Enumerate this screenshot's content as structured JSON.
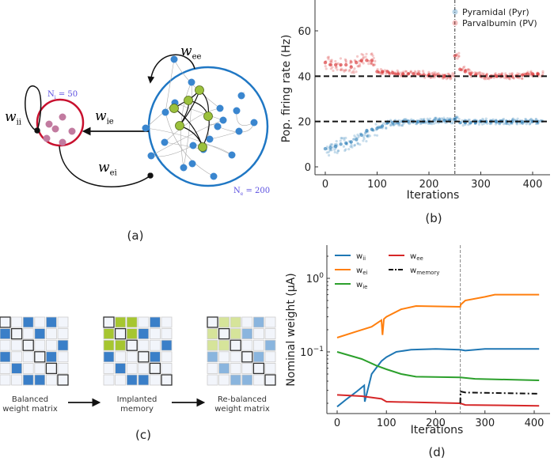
{
  "panel_labels": {
    "a": "(a)",
    "b": "(b)",
    "c": "(c)",
    "d": "(d)"
  },
  "diagram": {
    "w_ee": "w",
    "w_ee_sub": "ee",
    "w_ii": "w",
    "w_ii_sub": "ii",
    "w_ie": "w",
    "w_ie_sub": "ie",
    "w_ei": "w",
    "w_ei_sub": "ei",
    "ni_label": "N",
    "ni_sub": "i",
    "ni_value": " = 50",
    "ne_label": "N",
    "ne_sub": "e",
    "ne_value": " = 200",
    "colors": {
      "excitatory": "#1f77c4",
      "inhibitory": "#c8102e",
      "pyr_node": "#3a86cf",
      "pv_node": "#c27ba0",
      "memory_node": "#9bc13c",
      "label": "#5b4fe0"
    }
  },
  "matrices": {
    "items": [
      {
        "label_line1": "Balanced",
        "label_line2": "weight matrix",
        "cells": [
          "D.B.B.",
          "BD.B..",
          "..D..B",
          "B..DB.",
          ".B..D.",
          "..BB.D"
        ]
      },
      {
        "label_line1": "Implanted",
        "label_line2": "memory",
        "cells": [
          "DGG.B.",
          "GDGB..",
          "GGD..B",
          "B..DB.",
          ".B..D.",
          "..BB.D"
        ]
      },
      {
        "label_line1": "Re-balanced",
        "label_line2": "weight matrix",
        "cells": [
          "Dgg.b.",
          "gDgb..",
          "ggD..b",
          "b..Db.",
          ".b..D.",
          "..bb.D"
        ]
      }
    ],
    "colors": {
      "B": "#3a7fc8",
      "G": "#a6c630",
      "b": "#8ab5de",
      "g": "#d6e49a",
      ".": "#f2f5fb",
      "D": "#f2f5fb"
    }
  },
  "chart_data": [
    {
      "type": "scatter",
      "title": "",
      "xlabel": "Iterations",
      "ylabel": "Pop. firing rate (Hz)",
      "xlim": [
        -20,
        430
      ],
      "ylim": [
        -5,
        73
      ],
      "xticks": [
        0,
        100,
        200,
        300,
        400
      ],
      "yticks": [
        0,
        20,
        40,
        60
      ],
      "legend_position": "top-right",
      "x": [
        0,
        10,
        20,
        30,
        40,
        50,
        60,
        70,
        80,
        90,
        100,
        110,
        120,
        130,
        140,
        150,
        160,
        170,
        180,
        190,
        200,
        210,
        220,
        230,
        240,
        250,
        260,
        270,
        280,
        290,
        300,
        310,
        320,
        330,
        340,
        350,
        360,
        370,
        380,
        390,
        400,
        410
      ],
      "series": [
        {
          "name": "Pyramidal (Pyr)",
          "color": "#1f77b4",
          "values": [
            8,
            8.5,
            9,
            10,
            10.5,
            11,
            12,
            14,
            16,
            16.5,
            17,
            18,
            19.5,
            19.5,
            19.5,
            20,
            20,
            20,
            20,
            20,
            20,
            20.5,
            20.5,
            20.5,
            20.5,
            21,
            19.5,
            19.5,
            19.5,
            19.5,
            20,
            20,
            20,
            20,
            20,
            20,
            20,
            20,
            20,
            20,
            20,
            20
          ]
        },
        {
          "name": "Parvalbumin (PV)",
          "color": "#d62728",
          "values": [
            46,
            45,
            45,
            45,
            45,
            44,
            46,
            47,
            47,
            47,
            42,
            42,
            42,
            41.5,
            41,
            41,
            41,
            41,
            41,
            40.5,
            40.5,
            40.5,
            40,
            40,
            40,
            49,
            43,
            42,
            41,
            40.5,
            40,
            40,
            40,
            40,
            40,
            40,
            40,
            40,
            40.5,
            41,
            41,
            41
          ]
        }
      ],
      "reference_lines": {
        "horizontal": [
          20,
          40
        ],
        "vertical": [
          250
        ]
      }
    },
    {
      "type": "line",
      "title": "",
      "xlabel": "Iterations",
      "ylabel": "Nominal weight (μA)",
      "yscale": "log",
      "xlim": [
        -20,
        430
      ],
      "ylim": [
        0.0155,
        2.8
      ],
      "xticks": [
        0,
        100,
        200,
        300,
        400
      ],
      "yticks": [
        {
          "value": 1,
          "label": "10",
          "exp": "0"
        },
        {
          "value": 0.1,
          "label": "10",
          "exp": "−1"
        }
      ],
      "legend_position": "top-left",
      "reference_lines": {
        "vertical": [
          250
        ]
      },
      "series": [
        {
          "name": "w",
          "sub": "ii",
          "color": "#1f77b4",
          "style": "solid",
          "x": [
            0,
            20,
            40,
            55,
            56,
            70,
            90,
            100,
            120,
            150,
            200,
            250,
            260,
            300,
            410
          ],
          "values": [
            0.018,
            0.023,
            0.029,
            0.035,
            0.021,
            0.05,
            0.075,
            0.085,
            0.1,
            0.107,
            0.11,
            0.107,
            0.104,
            0.11,
            0.11
          ]
        },
        {
          "name": "w",
          "sub": "ei",
          "color": "#ff7f0e",
          "style": "solid",
          "x": [
            0,
            40,
            70,
            90,
            92,
            95,
            100,
            130,
            160,
            250,
            251,
            260,
            300,
            320,
            410
          ],
          "values": [
            0.156,
            0.19,
            0.22,
            0.27,
            0.17,
            0.28,
            0.3,
            0.38,
            0.42,
            0.41,
            0.44,
            0.5,
            0.56,
            0.6,
            0.6
          ]
        },
        {
          "name": "w",
          "sub": "ie",
          "color": "#2ca02c",
          "style": "solid",
          "x": [
            0,
            50,
            80,
            100,
            130,
            160,
            250,
            280,
            410
          ],
          "values": [
            0.1,
            0.08,
            0.065,
            0.058,
            0.05,
            0.046,
            0.045,
            0.043,
            0.041
          ]
        },
        {
          "name": "w",
          "sub": "ee",
          "color": "#d62728",
          "style": "solid",
          "x": [
            0,
            50,
            90,
            100,
            250,
            260,
            410
          ],
          "values": [
            0.026,
            0.025,
            0.023,
            0.021,
            0.02,
            0.019,
            0.0185
          ]
        },
        {
          "name": "w",
          "sub": "memory",
          "color": "#111111",
          "style": "dashdot",
          "x": [
            250,
            250.5,
            260,
            410
          ],
          "values": [
            0.02,
            0.029,
            0.028,
            0.027
          ]
        }
      ]
    }
  ]
}
